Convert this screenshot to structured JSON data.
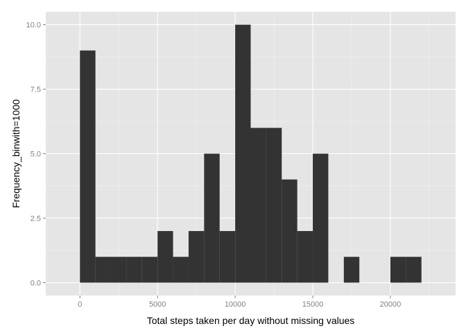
{
  "chart_data": {
    "type": "bar",
    "title": "",
    "xlabel": "Total steps taken per day without missing values",
    "ylabel": "Frequency_binwith=1000",
    "binwidth": 1000,
    "bins": [
      {
        "x0": 0,
        "x1": 1000,
        "count": 9
      },
      {
        "x0": 1000,
        "x1": 2000,
        "count": 1
      },
      {
        "x0": 2000,
        "x1": 3000,
        "count": 1
      },
      {
        "x0": 3000,
        "x1": 4000,
        "count": 1
      },
      {
        "x0": 4000,
        "x1": 5000,
        "count": 1
      },
      {
        "x0": 5000,
        "x1": 6000,
        "count": 2
      },
      {
        "x0": 6000,
        "x1": 7000,
        "count": 1
      },
      {
        "x0": 7000,
        "x1": 8000,
        "count": 2
      },
      {
        "x0": 8000,
        "x1": 9000,
        "count": 5
      },
      {
        "x0": 9000,
        "x1": 10000,
        "count": 2
      },
      {
        "x0": 10000,
        "x1": 11000,
        "count": 10
      },
      {
        "x0": 11000,
        "x1": 12000,
        "count": 6
      },
      {
        "x0": 12000,
        "x1": 13000,
        "count": 6
      },
      {
        "x0": 13000,
        "x1": 14000,
        "count": 4
      },
      {
        "x0": 14000,
        "x1": 15000,
        "count": 2
      },
      {
        "x0": 15000,
        "x1": 16000,
        "count": 5
      },
      {
        "x0": 16000,
        "x1": 17000,
        "count": 0
      },
      {
        "x0": 17000,
        "x1": 18000,
        "count": 1
      },
      {
        "x0": 18000,
        "x1": 19000,
        "count": 0
      },
      {
        "x0": 19000,
        "x1": 20000,
        "count": 0
      },
      {
        "x0": 20000,
        "x1": 21000,
        "count": 1
      },
      {
        "x0": 21000,
        "x1": 22000,
        "count": 1
      }
    ],
    "xlim": [
      -2200,
      24200
    ],
    "ylim": [
      -0.5,
      10.5
    ],
    "x_ticks": [
      0,
      5000,
      10000,
      15000,
      20000
    ],
    "x_tick_labels": [
      "0",
      "5000",
      "10000",
      "15000",
      "20000"
    ],
    "y_ticks": [
      0,
      2.5,
      5,
      7.5,
      10
    ],
    "y_tick_labels": [
      "0.0",
      "2.5",
      "5.0",
      "7.5",
      "10.0"
    ],
    "grid": true,
    "legend": "none",
    "colors": {
      "panel": "#e5e5e5",
      "grid_major": "#ffffff",
      "grid_minor": "#f2f2f2",
      "bar": "#333333",
      "tick_text": "#7f7f7f",
      "tick_mark": "#7f7f7f",
      "axis_title": "#000000"
    }
  }
}
